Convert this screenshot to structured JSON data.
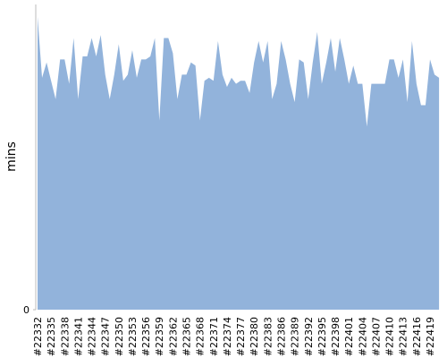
{
  "chart_data": {
    "type": "area",
    "y_label": "mins",
    "color": "#92b3db",
    "categories": [
      "#22332",
      null,
      null,
      "#22335",
      null,
      null,
      "#22338",
      null,
      null,
      "#22341",
      null,
      null,
      "#22344",
      null,
      null,
      "#22347",
      null,
      null,
      "#22350",
      null,
      null,
      "#22353",
      null,
      null,
      "#22356",
      null,
      null,
      "#22359",
      null,
      null,
      "#22362",
      null,
      null,
      "#22365",
      null,
      null,
      "#22368",
      null,
      null,
      "#22371",
      null,
      null,
      "#22374",
      null,
      null,
      "#22377",
      null,
      null,
      "#22380",
      null,
      null,
      "#22383",
      null,
      null,
      "#22386",
      null,
      null,
      "#22389",
      null,
      null,
      "#22392",
      null,
      null,
      "#22395",
      null,
      null,
      "#22398",
      null,
      null,
      "#22401",
      null,
      null,
      "#22404",
      null,
      null,
      "#22407",
      null,
      null,
      "#22410",
      null,
      null,
      "#22413",
      null,
      null,
      "#22416",
      null,
      null,
      "#22419",
      null,
      null
    ],
    "values": [
      96,
      76,
      81,
      75,
      69,
      82,
      82,
      74,
      89,
      69,
      83,
      83,
      89,
      83,
      90,
      77,
      69,
      77,
      87,
      75,
      77,
      85,
      76,
      82,
      82,
      83,
      89,
      62,
      89,
      89,
      84,
      69,
      77,
      77,
      81,
      80,
      62,
      75,
      76,
      75,
      88,
      77,
      73,
      76,
      74,
      75,
      75,
      71,
      81,
      88,
      81,
      88,
      69,
      74,
      88,
      82,
      74,
      68,
      82,
      81,
      69,
      81,
      91,
      74,
      81,
      89,
      78,
      89,
      82,
      74,
      80,
      74,
      74,
      60,
      74,
      74,
      74,
      74,
      82,
      82,
      76,
      82,
      68,
      88,
      74,
      67,
      67,
      82,
      77,
      76
    ],
    "ylim": [
      0,
      100
    ],
    "yticks": [
      0
    ]
  }
}
